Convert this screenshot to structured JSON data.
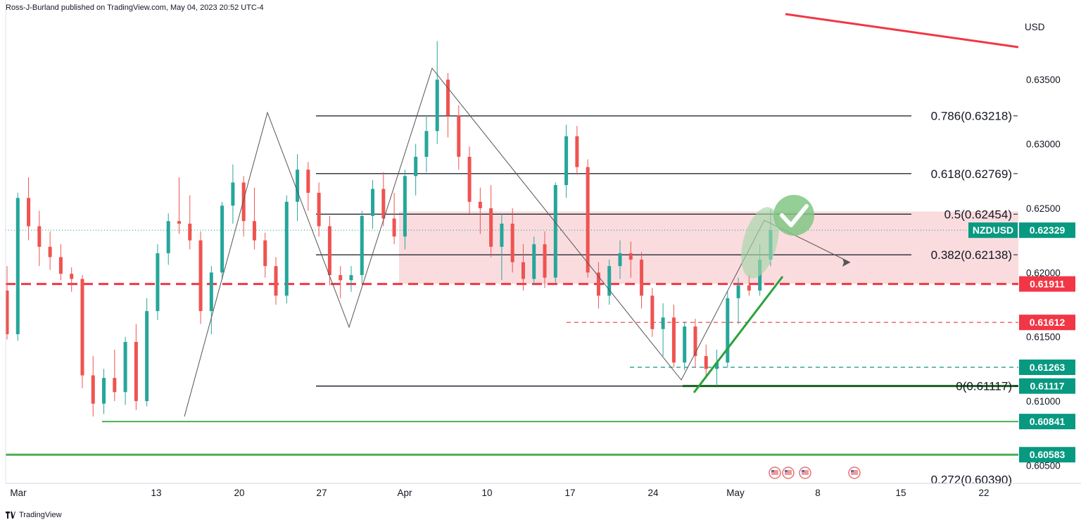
{
  "header": {
    "published": "Ross-J-Burland published on TradingView.com, May 04, 2023 20:52 UTC-4"
  },
  "footer": {
    "brand": "TradingView",
    "logo_icon": "tradingview-logo-icon"
  },
  "colors": {
    "up": "#26a69a",
    "down": "#ef5350",
    "red_line": "#f23645",
    "green_line": "#089981",
    "green_line2": "#4caf50",
    "zone": "#f8d0d4",
    "check": "#4caf50"
  },
  "chart_data": {
    "type": "candlestick",
    "symbol": "NZDUSD",
    "currency": "USD",
    "y_ticks": [
      "0.63500",
      "0.63000",
      "0.62500",
      "0.62000",
      "0.61500",
      "0.61000",
      "0.60500"
    ],
    "y_tick_values": [
      0.635,
      0.63,
      0.625,
      0.62,
      0.615,
      0.61,
      0.605
    ],
    "ylim": [
      0.6036,
      0.6401
    ],
    "x_ticks": [
      "Mar",
      "13",
      "20",
      "27",
      "Apr",
      "10",
      "17",
      "24",
      "May",
      "8",
      "15",
      "22"
    ],
    "x_tick_index": [
      0,
      2,
      3,
      4,
      5,
      6,
      7,
      8,
      9,
      10,
      11,
      12
    ],
    "x_week_start": [
      "2023-03-01",
      "2023-03-06",
      "2023-03-13",
      "2023-03-20",
      "2023-03-27",
      "2023-04-03",
      "2023-04-10",
      "2023-04-17",
      "2023-04-24",
      "2023-05-01",
      "2023-05-08",
      "2023-05-15",
      "2023-05-22"
    ],
    "fib_levels": [
      {
        "label": "0.786(0.63218)",
        "value": 0.63218
      },
      {
        "label": "0.618(0.62769)",
        "value": 0.62769
      },
      {
        "label": "0.5(0.62454)",
        "value": 0.62454
      },
      {
        "label": "0.382(0.62138)",
        "value": 0.62138
      },
      {
        "label": "0(0.61117)",
        "value": 0.61117
      },
      {
        "label": "0.272(0.60390)",
        "value": 0.6039
      }
    ],
    "price_tags": [
      {
        "text": "NZDUSD",
        "value": 0.62329,
        "color": "#089981",
        "symbol": true
      },
      {
        "text": "0.62329",
        "value": 0.62329,
        "color": "#089981"
      },
      {
        "text": "0.61911",
        "value": 0.61911,
        "color": "#f23645"
      },
      {
        "text": "0.61612",
        "value": 0.61612,
        "color": "#f23645"
      },
      {
        "text": "0.61263",
        "value": 0.61263,
        "color": "#089981"
      },
      {
        "text": "0.61117",
        "value": 0.61117,
        "color": "#089981"
      },
      {
        "text": "0.60841",
        "value": 0.60841,
        "color": "#089981"
      },
      {
        "text": "0.60583",
        "value": 0.60583,
        "color": "#089981"
      }
    ],
    "last_price": 0.62329,
    "candles": [
      [
        0.6186,
        0.6205,
        0.6148,
        0.6152
      ],
      [
        0.6152,
        0.6262,
        0.6147,
        0.6258
      ],
      [
        0.6258,
        0.6274,
        0.6225,
        0.6236
      ],
      [
        0.6236,
        0.6248,
        0.6205,
        0.622
      ],
      [
        0.622,
        0.6232,
        0.6202,
        0.6212
      ],
      [
        0.6212,
        0.6222,
        0.6194,
        0.6199
      ],
      [
        0.6199,
        0.6204,
        0.6185,
        0.6195
      ],
      [
        0.6195,
        0.6198,
        0.611,
        0.612
      ],
      [
        0.612,
        0.6135,
        0.6088,
        0.6098
      ],
      [
        0.6098,
        0.6125,
        0.609,
        0.6118
      ],
      [
        0.6118,
        0.614,
        0.61,
        0.6107
      ],
      [
        0.6107,
        0.615,
        0.6097,
        0.6146
      ],
      [
        0.6146,
        0.616,
        0.6093,
        0.61
      ],
      [
        0.61,
        0.618,
        0.6096,
        0.617
      ],
      [
        0.617,
        0.6222,
        0.6163,
        0.6215
      ],
      [
        0.6215,
        0.6246,
        0.6206,
        0.624
      ],
      [
        0.624,
        0.6274,
        0.623,
        0.6238
      ],
      [
        0.6238,
        0.626,
        0.6218,
        0.6225
      ],
      [
        0.6225,
        0.6232,
        0.616,
        0.617
      ],
      [
        0.617,
        0.6205,
        0.6152,
        0.62
      ],
      [
        0.62,
        0.6255,
        0.6195,
        0.6252
      ],
      [
        0.6252,
        0.6284,
        0.6238,
        0.627
      ],
      [
        0.627,
        0.6275,
        0.6228,
        0.624
      ],
      [
        0.624,
        0.6266,
        0.6218,
        0.6225
      ],
      [
        0.6225,
        0.6231,
        0.6196,
        0.6205
      ],
      [
        0.6205,
        0.6212,
        0.6175,
        0.6182
      ],
      [
        0.6182,
        0.626,
        0.6176,
        0.6255
      ],
      [
        0.6255,
        0.6292,
        0.624,
        0.628
      ],
      [
        0.628,
        0.6286,
        0.6248,
        0.6262
      ],
      [
        0.6262,
        0.627,
        0.6228,
        0.6236
      ],
      [
        0.6236,
        0.6244,
        0.619,
        0.6198
      ],
      [
        0.6198,
        0.6205,
        0.618,
        0.6194
      ],
      [
        0.6194,
        0.6205,
        0.6185,
        0.6198
      ],
      [
        0.6198,
        0.6248,
        0.6192,
        0.6244
      ],
      [
        0.6244,
        0.6272,
        0.6234,
        0.6265
      ],
      [
        0.6265,
        0.6278,
        0.6236,
        0.6242
      ],
      [
        0.6242,
        0.6262,
        0.6222,
        0.6228
      ],
      [
        0.6228,
        0.628,
        0.6218,
        0.6275
      ],
      [
        0.6275,
        0.63,
        0.626,
        0.629
      ],
      [
        0.629,
        0.6322,
        0.6278,
        0.631
      ],
      [
        0.631,
        0.638,
        0.63,
        0.635
      ],
      [
        0.635,
        0.6355,
        0.6305,
        0.6322
      ],
      [
        0.6322,
        0.633,
        0.628,
        0.629
      ],
      [
        0.629,
        0.6298,
        0.6246,
        0.6255
      ],
      [
        0.6255,
        0.6266,
        0.623,
        0.625
      ],
      [
        0.625,
        0.6268,
        0.6212,
        0.622
      ],
      [
        0.622,
        0.6246,
        0.6194,
        0.6238
      ],
      [
        0.6238,
        0.625,
        0.62,
        0.6208
      ],
      [
        0.6208,
        0.6222,
        0.6186,
        0.6195
      ],
      [
        0.6195,
        0.6228,
        0.619,
        0.6222
      ],
      [
        0.6222,
        0.6232,
        0.6188,
        0.6196
      ],
      [
        0.6196,
        0.627,
        0.6192,
        0.6268
      ],
      [
        0.6268,
        0.6315,
        0.6258,
        0.6306
      ],
      [
        0.6306,
        0.6314,
        0.6276,
        0.6282
      ],
      [
        0.6282,
        0.6288,
        0.6196,
        0.62
      ],
      [
        0.62,
        0.6208,
        0.6172,
        0.6182
      ],
      [
        0.6182,
        0.621,
        0.6175,
        0.6205
      ],
      [
        0.6205,
        0.6225,
        0.6195,
        0.6215
      ],
      [
        0.6215,
        0.6224,
        0.6196,
        0.621
      ],
      [
        0.621,
        0.6216,
        0.6172,
        0.6182
      ],
      [
        0.6182,
        0.6188,
        0.615,
        0.6156
      ],
      [
        0.6156,
        0.6176,
        0.6135,
        0.6165
      ],
      [
        0.6165,
        0.6175,
        0.6126,
        0.613
      ],
      [
        0.613,
        0.6162,
        0.6124,
        0.6158
      ],
      [
        0.6158,
        0.6164,
        0.6126,
        0.6135
      ],
      [
        0.6135,
        0.6144,
        0.6118,
        0.6125
      ],
      [
        0.6125,
        0.614,
        0.6112,
        0.613
      ],
      [
        0.613,
        0.6185,
        0.6126,
        0.618
      ],
      [
        0.618,
        0.6196,
        0.616,
        0.619
      ],
      [
        0.619,
        0.6198,
        0.6182,
        0.6186
      ],
      [
        0.6186,
        0.6222,
        0.6182,
        0.621
      ],
      [
        0.621,
        0.6249,
        0.6205,
        0.6233
      ]
    ],
    "annotations": {
      "red_dash_level": 0.61911,
      "red_dash_short_level": 0.61612,
      "green_dash_level": 0.61263,
      "green_lines": [
        0.60841,
        0.60583
      ],
      "zone": [
        0.61911,
        0.62475
      ],
      "check_icon": "checkmark-circle-icon",
      "flag_icon": "us-flag-icon"
    }
  }
}
